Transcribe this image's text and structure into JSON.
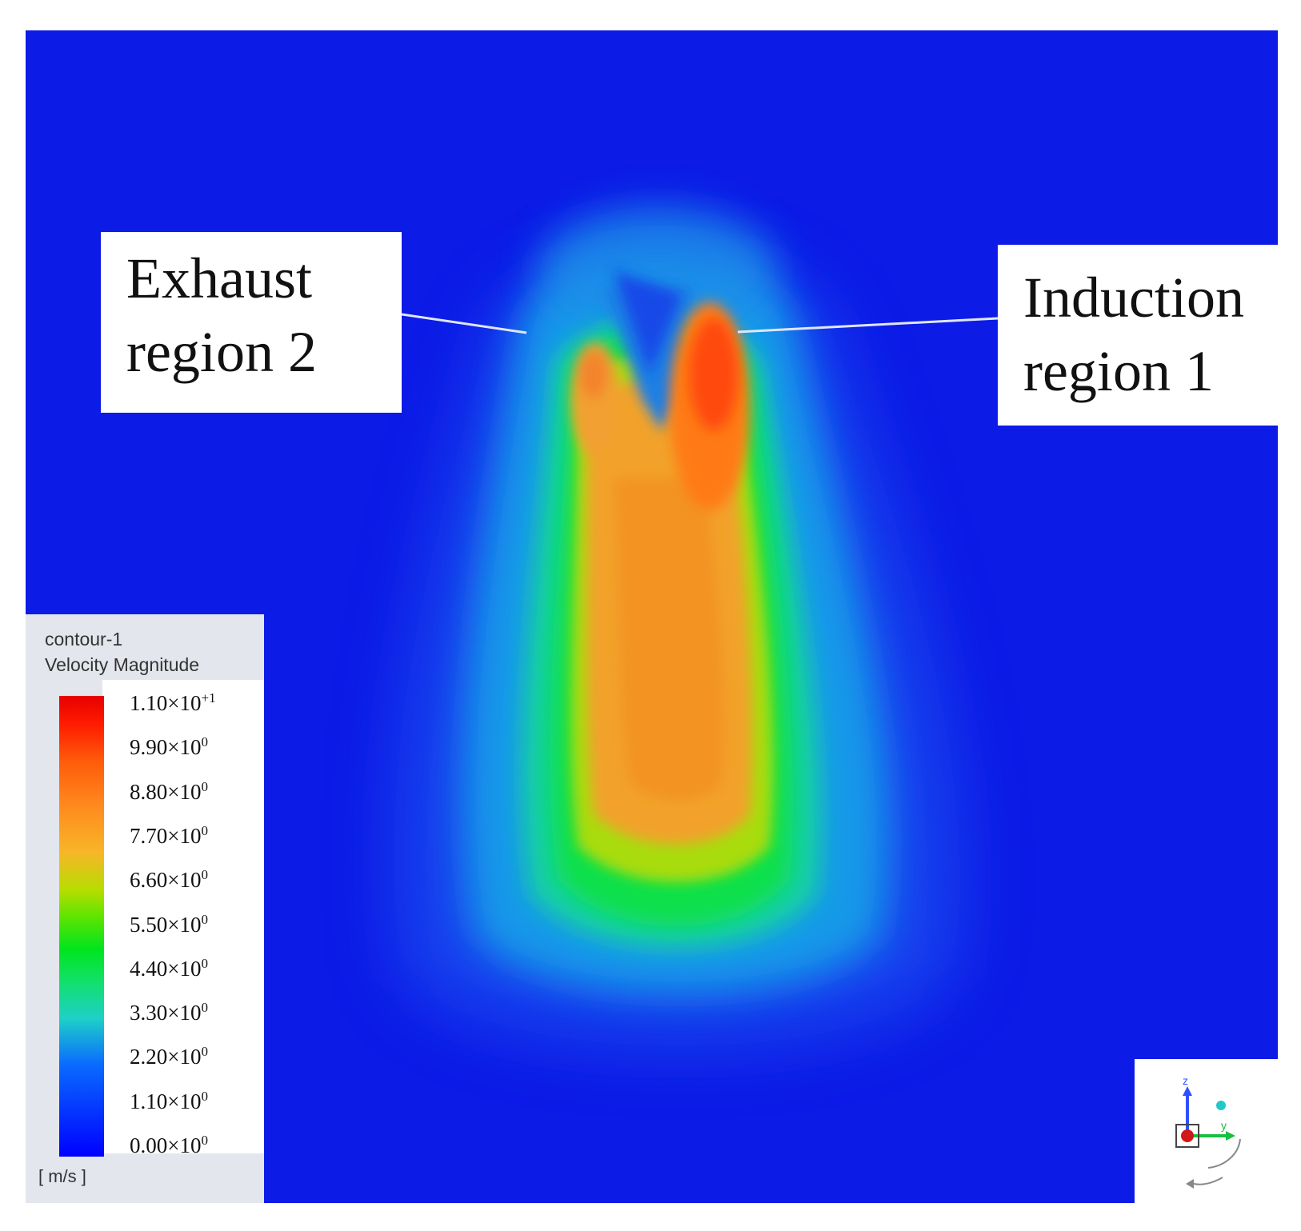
{
  "callouts": {
    "exhaust": [
      "Exhaust",
      "region 2"
    ],
    "induction": [
      "Induction",
      "region 1"
    ]
  },
  "legend": {
    "name": "contour-1",
    "variable": "Velocity Magnitude",
    "unit": "[ m/s ]",
    "ticks": [
      {
        "mantissa": "1.10",
        "exponent": "+1"
      },
      {
        "mantissa": "9.90",
        "exponent": "0"
      },
      {
        "mantissa": "8.80",
        "exponent": "0"
      },
      {
        "mantissa": "7.70",
        "exponent": "0"
      },
      {
        "mantissa": "6.60",
        "exponent": "0"
      },
      {
        "mantissa": "5.50",
        "exponent": "0"
      },
      {
        "mantissa": "4.40",
        "exponent": "0"
      },
      {
        "mantissa": "3.30",
        "exponent": "0"
      },
      {
        "mantissa": "2.20",
        "exponent": "0"
      },
      {
        "mantissa": "1.10",
        "exponent": "0"
      },
      {
        "mantissa": "0.00",
        "exponent": "0"
      }
    ],
    "range": [
      0,
      11
    ],
    "colors": [
      "#0000ff",
      "#0a6bff",
      "#1ed0c8",
      "#00e51e",
      "#b8dd00",
      "#f7b628",
      "#ff8a1e",
      "#ff1a00",
      "#e60000"
    ]
  },
  "triad": {
    "axes": [
      "z",
      "y"
    ],
    "icon": "axis-triad-icon"
  }
}
